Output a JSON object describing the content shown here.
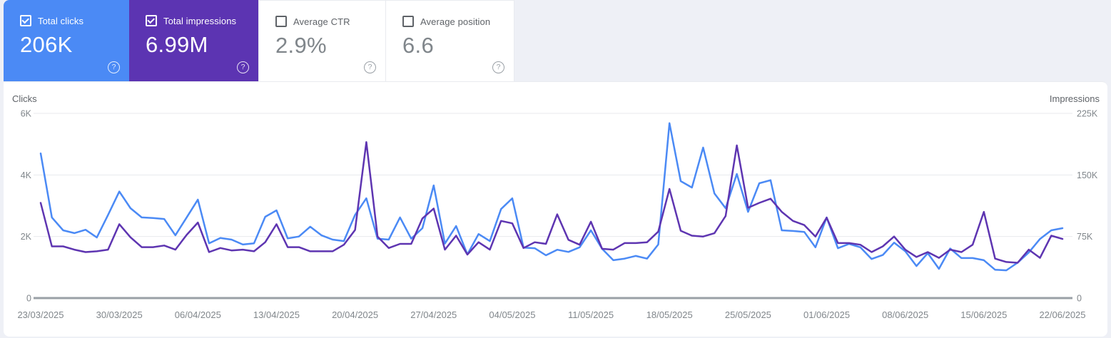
{
  "metrics": [
    {
      "label": "Total clicks",
      "value": "206K",
      "checked": true,
      "color": "#4b8af5",
      "help_icon": "?"
    },
    {
      "label": "Total impressions",
      "value": "6.99M",
      "checked": true,
      "color": "#5c34b2",
      "help_icon": "?"
    },
    {
      "label": "Average CTR",
      "value": "2.9%",
      "checked": false,
      "color": "#ffffff",
      "help_icon": "?"
    },
    {
      "label": "Average position",
      "value": "6.6",
      "checked": false,
      "color": "#ffffff",
      "help_icon": "?"
    }
  ],
  "colors": {
    "clicks_blue": "#4b8af5",
    "impressions_purple": "#5e35b1",
    "grid_line": "#e8eaed",
    "zero_axis": "#9aa0a6",
    "tick_text": "#80868b",
    "axis_title_text": "#5f6368",
    "page_background": "#eef0f6"
  },
  "chart_data": {
    "type": "line",
    "x_start": "23/03/2025",
    "x_end": "22/06/2025",
    "frequency": "daily",
    "grid": true,
    "left_axis": {
      "label": "Clicks",
      "ticks": [
        "0",
        "2K",
        "4K",
        "6K"
      ],
      "min": 0,
      "max": 6000
    },
    "right_axis": {
      "label": "Impressions",
      "ticks": [
        "0",
        "75K",
        "150K",
        "225K"
      ],
      "min": 0,
      "max": 225000
    },
    "x_tick_labels": [
      "23/03/2025",
      "30/03/2025",
      "06/04/2025",
      "13/04/2025",
      "20/04/2025",
      "27/04/2025",
      "04/05/2025",
      "11/05/2025",
      "18/05/2025",
      "25/05/2025",
      "01/06/2025",
      "08/06/2025",
      "15/06/2025",
      "22/06/2025"
    ],
    "series": [
      {
        "name": "Total clicks",
        "axis": "left",
        "color": "#4b8af5",
        "values": [
          4700,
          2620,
          2200,
          2110,
          2220,
          1970,
          2700,
          3460,
          2920,
          2620,
          2600,
          2570,
          2040,
          2620,
          3200,
          1780,
          1950,
          1900,
          1740,
          1780,
          2640,
          2850,
          1940,
          2000,
          2320,
          2040,
          1900,
          1850,
          2700,
          3240,
          1930,
          1900,
          2620,
          1930,
          2270,
          3660,
          1770,
          2340,
          1420,
          2080,
          1850,
          2890,
          3240,
          1640,
          1620,
          1390,
          1570,
          1500,
          1650,
          2200,
          1600,
          1230,
          1280,
          1370,
          1280,
          1740,
          5680,
          3800,
          3590,
          4890,
          3400,
          2920,
          4030,
          2800,
          3730,
          3830,
          2200,
          2180,
          2150,
          1650,
          2620,
          1620,
          1760,
          1650,
          1270,
          1400,
          1800,
          1520,
          1040,
          1460,
          950,
          1610,
          1300,
          1300,
          1230,
          920,
          900,
          1150,
          1480,
          1920,
          2200,
          2270
        ]
      },
      {
        "name": "Total impressions",
        "axis": "right",
        "color": "#5e35b1",
        "values": [
          116000,
          63000,
          63000,
          59000,
          56000,
          57000,
          59000,
          90000,
          74000,
          62000,
          62000,
          64000,
          59000,
          77000,
          92000,
          56000,
          61000,
          58000,
          59000,
          57000,
          68000,
          90000,
          62000,
          62000,
          57000,
          57000,
          57000,
          65000,
          83000,
          190000,
          75000,
          61000,
          66000,
          66000,
          97000,
          109000,
          59000,
          76000,
          53000,
          68000,
          59000,
          94000,
          91000,
          61000,
          68000,
          66000,
          102000,
          71000,
          65000,
          93000,
          60000,
          59000,
          67000,
          67000,
          68000,
          81000,
          133000,
          82000,
          76000,
          75000,
          79000,
          100000,
          186000,
          110000,
          116000,
          121000,
          105000,
          94000,
          89000,
          75000,
          98000,
          67000,
          67000,
          65000,
          56000,
          63000,
          75000,
          59000,
          50000,
          56000,
          49000,
          59000,
          56000,
          65000,
          105000,
          48000,
          44000,
          43000,
          59000,
          49000,
          76000,
          72000
        ]
      }
    ]
  }
}
